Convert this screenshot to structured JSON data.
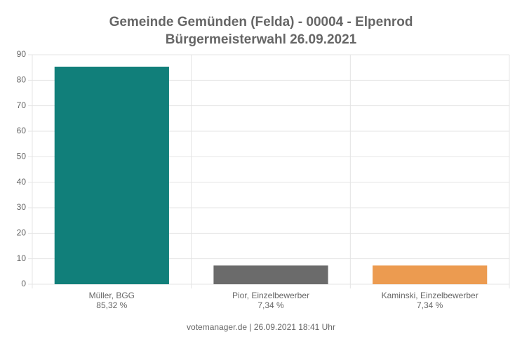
{
  "chart_data": {
    "type": "bar",
    "title": "Gemeinde Gemünden (Felda) - 00004 - Elpenrod",
    "subtitle": "Bürgermeisterwahl 26.09.2021",
    "categories": [
      "Müller, BGG",
      "Pior, Einzelbewerber",
      "Kaminski, Einzelbewerber"
    ],
    "values": [
      85.32,
      7.34,
      7.34
    ],
    "value_labels": [
      "85,32 %",
      "7,34 %",
      "7,34 %"
    ],
    "colors": [
      "#117f7a",
      "#6b6b6b",
      "#ec9b50"
    ],
    "ylim": [
      0,
      90
    ],
    "yticks": [
      0,
      10,
      20,
      30,
      40,
      50,
      60,
      70,
      80,
      90
    ],
    "grid": true,
    "footer": "votemanager.de | 26.09.2021 18:41 Uhr"
  }
}
